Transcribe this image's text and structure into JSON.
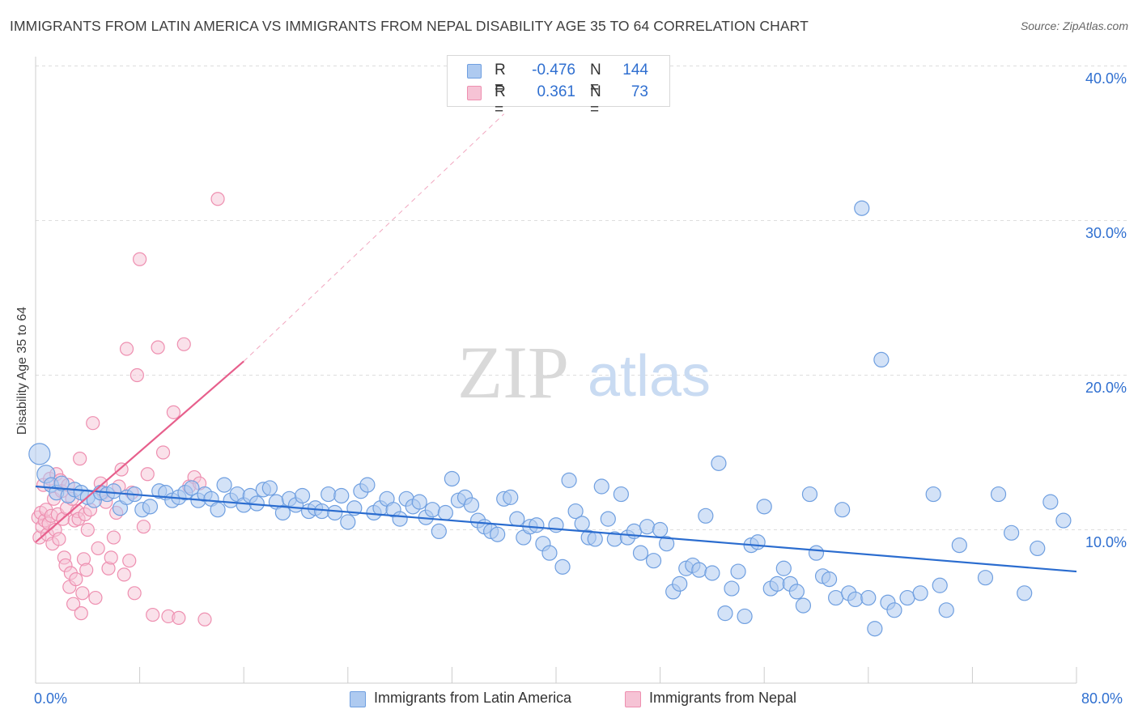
{
  "title": "IMMIGRANTS FROM LATIN AMERICA VS IMMIGRANTS FROM NEPAL DISABILITY AGE 35 TO 64 CORRELATION CHART",
  "source": "Source: ZipAtlas.com",
  "watermark": {
    "zip": "ZIP",
    "atlas": "atlas"
  },
  "colors": {
    "blue": "#6f9fe0",
    "blue_fill": "#aecaf0",
    "blue_line": "#2a6ccf",
    "pink": "#ee8fb0",
    "pink_fill": "#f6c3d5",
    "pink_line": "#e75f8c",
    "tick_text": "#2f6fd0",
    "grid": "#dddddd"
  },
  "stats": [
    {
      "r_label": "R =",
      "r": "-0.476",
      "n_label": "N =",
      "n": "144"
    },
    {
      "r_label": "R =",
      "r": "0.361",
      "n_label": "N =",
      "n": "73"
    }
  ],
  "legend": [
    {
      "label": "Immigrants from Latin America"
    },
    {
      "label": "Immigrants from Nepal"
    }
  ],
  "chart_data": {
    "type": "scatter",
    "title": "IMMIGRANTS FROM LATIN AMERICA VS IMMIGRANTS FROM NEPAL DISABILITY AGE 35 TO 64 CORRELATION CHART",
    "xlabel": "",
    "ylabel": "Disability Age 35 to 64",
    "xlim": [
      0,
      80
    ],
    "ylim": [
      0,
      42
    ],
    "x_tick_labels": [
      "0.0%",
      "80.0%"
    ],
    "y_ticks": [
      10,
      20,
      30,
      40
    ],
    "y_tick_labels": [
      "10.0%",
      "20.0%",
      "30.0%",
      "40.0%"
    ],
    "grid": true,
    "legend_position": "bottom-center",
    "series": [
      {
        "name": "Immigrants from Latin America",
        "r": -0.476,
        "n": 144,
        "trend": {
          "x": [
            0,
            80
          ],
          "y": [
            12.8,
            7.3
          ]
        },
        "points": [
          [
            0.3,
            14.9
          ],
          [
            0.8,
            13.6
          ],
          [
            1.2,
            12.9
          ],
          [
            1.6,
            12.4
          ],
          [
            2.0,
            13.0
          ],
          [
            2.5,
            12.2
          ],
          [
            3.0,
            12.6
          ],
          [
            3.5,
            12.4
          ],
          [
            4.0,
            12.1
          ],
          [
            4.5,
            11.9
          ],
          [
            5.0,
            12.4
          ],
          [
            5.5,
            12.3
          ],
          [
            6.0,
            12.5
          ],
          [
            6.5,
            11.4
          ],
          [
            7.0,
            12.1
          ],
          [
            7.6,
            12.3
          ],
          [
            8.2,
            11.3
          ],
          [
            8.8,
            11.5
          ],
          [
            9.5,
            12.5
          ],
          [
            10.0,
            12.4
          ],
          [
            10.5,
            11.9
          ],
          [
            11.0,
            12.1
          ],
          [
            11.5,
            12.4
          ],
          [
            12.0,
            12.7
          ],
          [
            12.5,
            11.9
          ],
          [
            13.0,
            12.3
          ],
          [
            13.5,
            12.0
          ],
          [
            14.0,
            11.3
          ],
          [
            14.5,
            12.9
          ],
          [
            15.0,
            11.9
          ],
          [
            15.5,
            12.3
          ],
          [
            16.0,
            11.6
          ],
          [
            16.5,
            12.2
          ],
          [
            17.0,
            11.7
          ],
          [
            17.5,
            12.6
          ],
          [
            18.0,
            12.7
          ],
          [
            18.5,
            11.8
          ],
          [
            19.0,
            11.1
          ],
          [
            19.5,
            12.0
          ],
          [
            20.0,
            11.6
          ],
          [
            20.5,
            12.2
          ],
          [
            21.0,
            11.2
          ],
          [
            21.5,
            11.4
          ],
          [
            22.0,
            11.2
          ],
          [
            22.5,
            12.3
          ],
          [
            23.0,
            11.1
          ],
          [
            23.5,
            12.2
          ],
          [
            24.0,
            10.5
          ],
          [
            24.5,
            11.4
          ],
          [
            25.0,
            12.5
          ],
          [
            25.5,
            12.9
          ],
          [
            26.0,
            11.1
          ],
          [
            26.5,
            11.4
          ],
          [
            27.0,
            12.0
          ],
          [
            27.5,
            11.3
          ],
          [
            28.0,
            10.7
          ],
          [
            28.5,
            12.0
          ],
          [
            29.0,
            11.5
          ],
          [
            29.5,
            11.8
          ],
          [
            30.0,
            10.8
          ],
          [
            30.5,
            11.3
          ],
          [
            31.0,
            9.9
          ],
          [
            31.5,
            11.1
          ],
          [
            32.0,
            13.3
          ],
          [
            32.5,
            11.9
          ],
          [
            33.0,
            12.1
          ],
          [
            33.5,
            11.6
          ],
          [
            34.0,
            10.6
          ],
          [
            34.5,
            10.2
          ],
          [
            35.0,
            9.9
          ],
          [
            35.5,
            9.7
          ],
          [
            36.0,
            12.0
          ],
          [
            36.5,
            12.1
          ],
          [
            37.0,
            10.7
          ],
          [
            37.5,
            9.5
          ],
          [
            38.0,
            10.2
          ],
          [
            38.5,
            10.3
          ],
          [
            39.0,
            9.1
          ],
          [
            39.5,
            8.5
          ],
          [
            40.0,
            10.3
          ],
          [
            40.5,
            7.6
          ],
          [
            41.0,
            13.2
          ],
          [
            41.5,
            11.2
          ],
          [
            42.0,
            10.4
          ],
          [
            42.5,
            9.5
          ],
          [
            43.0,
            9.4
          ],
          [
            43.5,
            12.8
          ],
          [
            44.0,
            10.7
          ],
          [
            44.5,
            9.4
          ],
          [
            45.0,
            12.3
          ],
          [
            45.5,
            9.5
          ],
          [
            46.0,
            9.9
          ],
          [
            46.5,
            8.5
          ],
          [
            47.0,
            10.2
          ],
          [
            47.5,
            8.0
          ],
          [
            48.0,
            10.0
          ],
          [
            48.5,
            9.1
          ],
          [
            49.0,
            6.0
          ],
          [
            49.5,
            6.5
          ],
          [
            50.0,
            7.5
          ],
          [
            50.5,
            7.7
          ],
          [
            51.0,
            7.4
          ],
          [
            51.5,
            10.9
          ],
          [
            52.0,
            7.2
          ],
          [
            52.5,
            14.3
          ],
          [
            53.0,
            4.6
          ],
          [
            53.5,
            6.2
          ],
          [
            54.0,
            7.3
          ],
          [
            54.5,
            4.4
          ],
          [
            55.0,
            9.0
          ],
          [
            55.5,
            9.2
          ],
          [
            56.0,
            11.5
          ],
          [
            56.5,
            6.2
          ],
          [
            57.0,
            6.5
          ],
          [
            57.5,
            7.5
          ],
          [
            58.0,
            6.5
          ],
          [
            58.5,
            6.0
          ],
          [
            59.0,
            5.1
          ],
          [
            59.5,
            12.3
          ],
          [
            60.0,
            8.5
          ],
          [
            60.5,
            7.0
          ],
          [
            61.0,
            6.8
          ],
          [
            61.5,
            5.6
          ],
          [
            62.0,
            11.3
          ],
          [
            62.5,
            5.9
          ],
          [
            63.0,
            5.5
          ],
          [
            63.5,
            30.8
          ],
          [
            64.0,
            5.6
          ],
          [
            64.5,
            3.6
          ],
          [
            65.0,
            21.0
          ],
          [
            65.5,
            5.3
          ],
          [
            66.0,
            4.8
          ],
          [
            67.0,
            5.6
          ],
          [
            68.0,
            5.9
          ],
          [
            69.0,
            12.3
          ],
          [
            69.5,
            6.4
          ],
          [
            70.0,
            4.8
          ],
          [
            71.0,
            9.0
          ],
          [
            73.0,
            6.9
          ],
          [
            74.0,
            12.3
          ],
          [
            75.0,
            9.8
          ],
          [
            76.0,
            5.9
          ],
          [
            77.0,
            8.8
          ],
          [
            78.0,
            11.8
          ],
          [
            79.0,
            10.6
          ]
        ]
      },
      {
        "name": "Immigrants from Nepal",
        "r": 0.361,
        "n": 73,
        "trend": {
          "x": [
            0,
            16
          ],
          "y": [
            9.2,
            20.9
          ]
        },
        "trend_dashed": {
          "x": [
            16,
            36
          ],
          "y": [
            20.9,
            36.9
          ]
        },
        "points": [
          [
            0.2,
            10.8
          ],
          [
            0.3,
            9.5
          ],
          [
            0.4,
            11.1
          ],
          [
            0.5,
            10.2
          ],
          [
            0.6,
            12.9
          ],
          [
            0.7,
            10.6
          ],
          [
            0.8,
            11.3
          ],
          [
            0.9,
            9.7
          ],
          [
            1.0,
            10.4
          ],
          [
            1.1,
            13.3
          ],
          [
            1.2,
            10.9
          ],
          [
            1.3,
            9.1
          ],
          [
            1.4,
            12.0
          ],
          [
            1.5,
            10.0
          ],
          [
            1.6,
            13.6
          ],
          [
            1.7,
            11.0
          ],
          [
            1.8,
            9.4
          ],
          [
            1.9,
            13.2
          ],
          [
            2.0,
            12.5
          ],
          [
            2.1,
            10.7
          ],
          [
            2.2,
            8.2
          ],
          [
            2.3,
            7.7
          ],
          [
            2.4,
            11.4
          ],
          [
            2.5,
            12.9
          ],
          [
            2.6,
            6.3
          ],
          [
            2.7,
            7.2
          ],
          [
            2.8,
            12.0
          ],
          [
            2.9,
            5.2
          ],
          [
            3.0,
            10.6
          ],
          [
            3.1,
            6.8
          ],
          [
            3.2,
            11.2
          ],
          [
            3.3,
            10.7
          ],
          [
            3.4,
            14.6
          ],
          [
            3.5,
            4.6
          ],
          [
            3.6,
            5.9
          ],
          [
            3.7,
            8.1
          ],
          [
            3.8,
            11.0
          ],
          [
            3.9,
            7.4
          ],
          [
            4.0,
            10.0
          ],
          [
            4.2,
            11.3
          ],
          [
            4.4,
            16.9
          ],
          [
            4.6,
            5.6
          ],
          [
            4.8,
            8.8
          ],
          [
            5.0,
            13.0
          ],
          [
            5.2,
            12.4
          ],
          [
            5.4,
            11.8
          ],
          [
            5.6,
            7.5
          ],
          [
            5.8,
            8.2
          ],
          [
            6.0,
            9.5
          ],
          [
            6.2,
            11.1
          ],
          [
            6.4,
            12.8
          ],
          [
            6.6,
            13.9
          ],
          [
            6.8,
            7.1
          ],
          [
            7.0,
            21.7
          ],
          [
            7.2,
            8.0
          ],
          [
            7.4,
            12.4
          ],
          [
            7.6,
            5.9
          ],
          [
            7.8,
            20.0
          ],
          [
            8.0,
            27.5
          ],
          [
            8.3,
            10.2
          ],
          [
            8.6,
            13.6
          ],
          [
            9.0,
            4.5
          ],
          [
            9.4,
            21.8
          ],
          [
            9.8,
            15.0
          ],
          [
            10.2,
            4.4
          ],
          [
            10.6,
            17.6
          ],
          [
            11.0,
            4.3
          ],
          [
            11.4,
            22.0
          ],
          [
            11.8,
            12.8
          ],
          [
            12.2,
            13.4
          ],
          [
            12.6,
            13.0
          ],
          [
            13.0,
            4.2
          ],
          [
            14.0,
            31.4
          ]
        ]
      }
    ]
  }
}
